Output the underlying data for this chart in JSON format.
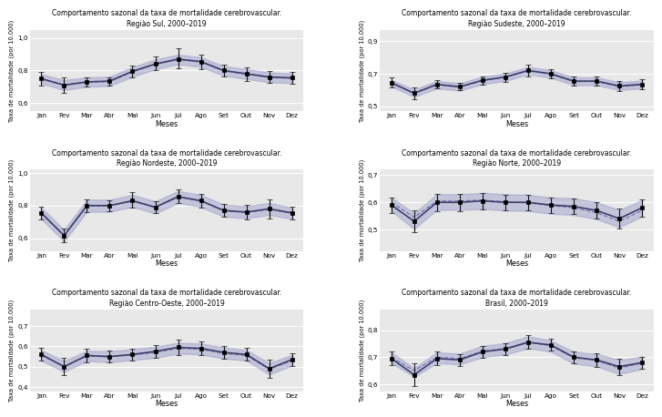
{
  "months": [
    "Jan",
    "Fev",
    "Mar",
    "Abr",
    "Mai",
    "Jun",
    "Jul",
    "Ago",
    "Set",
    "Out",
    "Nov",
    "Dez"
  ],
  "regions": [
    {
      "title": "Comportamento sazonal da taxa de mortalidade cerebrovascular.\nRegiào Sul, 2000–2019",
      "ylim": [
        0.55,
        1.05
      ],
      "yticks": [
        0.6,
        0.8,
        1.0
      ],
      "ytick_labels": [
        "0,6",
        "0,8",
        "1,0"
      ],
      "mean": [
        0.75,
        0.71,
        0.73,
        0.735,
        0.795,
        0.84,
        0.87,
        0.855,
        0.8,
        0.78,
        0.76,
        0.755
      ],
      "trend": [
        0.748,
        0.712,
        0.728,
        0.732,
        0.792,
        0.838,
        0.868,
        0.852,
        0.798,
        0.778,
        0.758,
        0.752
      ],
      "ci_lower": [
        0.72,
        0.68,
        0.7,
        0.705,
        0.762,
        0.808,
        0.838,
        0.822,
        0.768,
        0.748,
        0.728,
        0.722
      ],
      "ci_upper": [
        0.778,
        0.742,
        0.758,
        0.762,
        0.822,
        0.868,
        0.898,
        0.882,
        0.828,
        0.808,
        0.788,
        0.782
      ],
      "err_lower": [
        0.04,
        0.045,
        0.03,
        0.025,
        0.035,
        0.04,
        0.055,
        0.045,
        0.035,
        0.042,
        0.038,
        0.038
      ],
      "err_upper": [
        0.04,
        0.045,
        0.03,
        0.025,
        0.035,
        0.045,
        0.065,
        0.045,
        0.035,
        0.042,
        0.038,
        0.038
      ]
    },
    {
      "title": "Comportamento sazonal da taxa de mortalidade cerebrovascular.\nRegiào Sudeste, 2000–2019",
      "ylim": [
        0.47,
        0.97
      ],
      "yticks": [
        0.5,
        0.7,
        0.9
      ],
      "ytick_labels": [
        "0,5",
        "0,7",
        "0,9"
      ],
      "mean": [
        0.645,
        0.58,
        0.635,
        0.62,
        0.66,
        0.68,
        0.72,
        0.7,
        0.655,
        0.655,
        0.625,
        0.635
      ],
      "trend": [
        0.642,
        0.582,
        0.632,
        0.618,
        0.658,
        0.678,
        0.718,
        0.698,
        0.652,
        0.652,
        0.622,
        0.632
      ],
      "ci_lower": [
        0.622,
        0.558,
        0.61,
        0.596,
        0.636,
        0.656,
        0.696,
        0.676,
        0.63,
        0.63,
        0.6,
        0.61
      ],
      "ci_upper": [
        0.662,
        0.604,
        0.656,
        0.642,
        0.682,
        0.702,
        0.742,
        0.722,
        0.678,
        0.678,
        0.648,
        0.658
      ],
      "err_lower": [
        0.03,
        0.035,
        0.025,
        0.022,
        0.025,
        0.028,
        0.038,
        0.03,
        0.028,
        0.03,
        0.03,
        0.03
      ],
      "err_upper": [
        0.03,
        0.035,
        0.025,
        0.022,
        0.025,
        0.028,
        0.038,
        0.03,
        0.028,
        0.03,
        0.03,
        0.03
      ]
    },
    {
      "title": "Comportamento sazonal da taxa de mortalidade cerebrovascular.\nRegiào Nordeste, 2000–2019",
      "ylim": [
        0.52,
        1.02
      ],
      "yticks": [
        0.6,
        0.8,
        1.0
      ],
      "ytick_labels": [
        "0,6",
        "0,8",
        "1,0"
      ],
      "mean": [
        0.755,
        0.615,
        0.8,
        0.8,
        0.83,
        0.79,
        0.855,
        0.83,
        0.77,
        0.76,
        0.78,
        0.755
      ],
      "trend": [
        0.752,
        0.618,
        0.798,
        0.798,
        0.828,
        0.788,
        0.852,
        0.828,
        0.768,
        0.758,
        0.778,
        0.752
      ],
      "ci_lower": [
        0.718,
        0.58,
        0.762,
        0.762,
        0.792,
        0.752,
        0.816,
        0.792,
        0.732,
        0.722,
        0.742,
        0.718
      ],
      "ci_upper": [
        0.788,
        0.652,
        0.836,
        0.836,
        0.866,
        0.826,
        0.89,
        0.866,
        0.806,
        0.796,
        0.816,
        0.788
      ],
      "err_lower": [
        0.038,
        0.042,
        0.038,
        0.035,
        0.045,
        0.038,
        0.042,
        0.04,
        0.038,
        0.045,
        0.06,
        0.038
      ],
      "err_upper": [
        0.038,
        0.042,
        0.038,
        0.035,
        0.055,
        0.038,
        0.042,
        0.04,
        0.038,
        0.045,
        0.06,
        0.038
      ]
    },
    {
      "title": "Comportamento sazonal da taxa de mortalidade cerebrovascular.\nRegiào Norte, 2000–2019",
      "ylim": [
        0.42,
        0.72
      ],
      "yticks": [
        0.5,
        0.6,
        0.7
      ],
      "ytick_labels": [
        "0,5",
        "0,6",
        "0,7"
      ],
      "mean": [
        0.59,
        0.53,
        0.6,
        0.6,
        0.605,
        0.6,
        0.6,
        0.59,
        0.585,
        0.57,
        0.54,
        0.58
      ],
      "trend": [
        0.6,
        0.545,
        0.605,
        0.605,
        0.608,
        0.602,
        0.598,
        0.588,
        0.58,
        0.562,
        0.53,
        0.57
      ],
      "ci_lower": [
        0.568,
        0.502,
        0.572,
        0.572,
        0.575,
        0.57,
        0.568,
        0.558,
        0.553,
        0.538,
        0.508,
        0.548
      ],
      "ci_upper": [
        0.618,
        0.56,
        0.63,
        0.63,
        0.635,
        0.63,
        0.628,
        0.618,
        0.615,
        0.6,
        0.572,
        0.608
      ],
      "err_lower": [
        0.028,
        0.04,
        0.032,
        0.032,
        0.03,
        0.028,
        0.028,
        0.028,
        0.028,
        0.03,
        0.038,
        0.032
      ],
      "err_upper": [
        0.028,
        0.04,
        0.032,
        0.032,
        0.03,
        0.028,
        0.028,
        0.028,
        0.028,
        0.03,
        0.038,
        0.032
      ]
    },
    {
      "title": "Comportamento sazonal da taxa de mortalidade cerebrovascular.\nRegiào Centro-Oeste, 2000–2019",
      "ylim": [
        0.38,
        0.78
      ],
      "yticks": [
        0.4,
        0.5,
        0.6,
        0.7
      ],
      "ytick_labels": [
        "0,4",
        "0,5",
        "0,6",
        "0,7"
      ],
      "mean": [
        0.56,
        0.5,
        0.555,
        0.55,
        0.56,
        0.575,
        0.595,
        0.59,
        0.57,
        0.56,
        0.49,
        0.535
      ],
      "trend": [
        0.555,
        0.502,
        0.552,
        0.548,
        0.558,
        0.57,
        0.59,
        0.586,
        0.565,
        0.555,
        0.488,
        0.53
      ],
      "ci_lower": [
        0.53,
        0.475,
        0.528,
        0.522,
        0.532,
        0.544,
        0.564,
        0.56,
        0.54,
        0.53,
        0.462,
        0.505
      ],
      "ci_upper": [
        0.582,
        0.528,
        0.578,
        0.576,
        0.586,
        0.598,
        0.618,
        0.614,
        0.595,
        0.582,
        0.518,
        0.558
      ],
      "err_lower": [
        0.032,
        0.042,
        0.035,
        0.028,
        0.028,
        0.03,
        0.04,
        0.035,
        0.03,
        0.032,
        0.045,
        0.032
      ],
      "err_upper": [
        0.032,
        0.042,
        0.035,
        0.028,
        0.028,
        0.03,
        0.04,
        0.035,
        0.03,
        0.032,
        0.045,
        0.032
      ]
    },
    {
      "title": "Comportamento sazonal da taxa de mortalidade cerebrovascular.\nBrasil, 2000–2019",
      "ylim": [
        0.575,
        0.875
      ],
      "yticks": [
        0.6,
        0.7,
        0.8
      ],
      "ytick_labels": [
        "0,6",
        "0,7",
        "0,8"
      ],
      "mean": [
        0.695,
        0.635,
        0.695,
        0.69,
        0.72,
        0.73,
        0.755,
        0.745,
        0.7,
        0.69,
        0.665,
        0.68
      ],
      "trend": [
        0.7,
        0.65,
        0.7,
        0.695,
        0.722,
        0.732,
        0.755,
        0.742,
        0.698,
        0.688,
        0.66,
        0.678
      ],
      "ci_lower": [
        0.678,
        0.628,
        0.678,
        0.673,
        0.7,
        0.71,
        0.733,
        0.72,
        0.676,
        0.666,
        0.638,
        0.656
      ],
      "ci_upper": [
        0.718,
        0.66,
        0.718,
        0.713,
        0.742,
        0.752,
        0.777,
        0.762,
        0.72,
        0.712,
        0.69,
        0.702
      ],
      "err_lower": [
        0.025,
        0.042,
        0.025,
        0.022,
        0.022,
        0.022,
        0.025,
        0.022,
        0.022,
        0.025,
        0.03,
        0.022
      ],
      "err_upper": [
        0.025,
        0.042,
        0.025,
        0.022,
        0.022,
        0.022,
        0.025,
        0.022,
        0.022,
        0.025,
        0.03,
        0.022
      ]
    }
  ],
  "line_color": "#3d3d6b",
  "trend_color": "#6868a8",
  "shade_color": "#9898c8",
  "bg_color": "#e8e8e8",
  "grid_color": "#ffffff",
  "errorbar_color": "#111111",
  "ylabel": "Taxa de mortalidade (por 10.000)",
  "xlabel": "Meses"
}
